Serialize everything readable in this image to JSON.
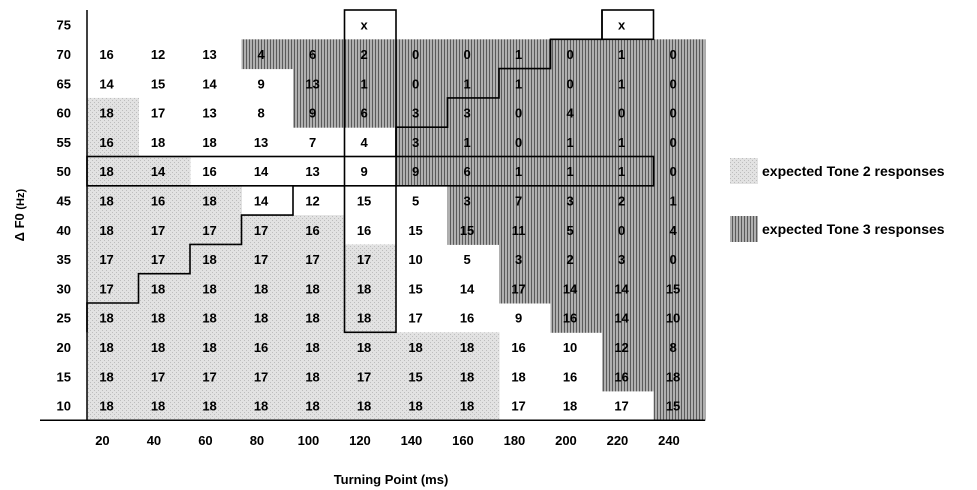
{
  "chart_data": {
    "type": "heatmap",
    "xlabel": "Turning Point (ms)",
    "ylabel": "Δ F0",
    "ylabel_unit": "(Hz)",
    "x_categories": [
      "20",
      "40",
      "60",
      "80",
      "100",
      "120",
      "140",
      "160",
      "180",
      "200",
      "220",
      "240"
    ],
    "y_categories": [
      "75",
      "70",
      "65",
      "60",
      "55",
      "50",
      "45",
      "40",
      "35",
      "30",
      "25",
      "20",
      "15",
      "10"
    ],
    "values": [
      [
        "",
        "",
        "",
        "",
        "",
        "x",
        "",
        "",
        "",
        "",
        "x",
        ""
      ],
      [
        "16",
        "12",
        "13",
        "4",
        "6",
        "2",
        "0",
        "0",
        "1",
        "0",
        "1",
        "0"
      ],
      [
        "14",
        "15",
        "14",
        "9",
        "13",
        "1",
        "0",
        "1",
        "1",
        "0",
        "1",
        "0"
      ],
      [
        "18",
        "17",
        "13",
        "8",
        "9",
        "6",
        "3",
        "3",
        "0",
        "4",
        "0",
        "0"
      ],
      [
        "16",
        "18",
        "18",
        "13",
        "7",
        "4",
        "3",
        "1",
        "0",
        "1",
        "1",
        "0"
      ],
      [
        "18",
        "14",
        "16",
        "14",
        "13",
        "9",
        "9",
        "6",
        "1",
        "1",
        "1",
        "0"
      ],
      [
        "18",
        "16",
        "18",
        "14",
        "12",
        "15",
        "5",
        "3",
        "7",
        "3",
        "2",
        "1"
      ],
      [
        "18",
        "17",
        "17",
        "17",
        "16",
        "16",
        "15",
        "15",
        "11",
        "5",
        "0",
        "4"
      ],
      [
        "17",
        "17",
        "18",
        "17",
        "17",
        "17",
        "10",
        "5",
        "3",
        "2",
        "3",
        "0"
      ],
      [
        "17",
        "18",
        "18",
        "18",
        "18",
        "18",
        "15",
        "14",
        "17",
        "14",
        "14",
        "15"
      ],
      [
        "18",
        "18",
        "18",
        "18",
        "18",
        "18",
        "17",
        "16",
        "9",
        "16",
        "14",
        "10"
      ],
      [
        "18",
        "18",
        "18",
        "16",
        "18",
        "18",
        "18",
        "18",
        "16",
        "10",
        "12",
        "8"
      ],
      [
        "18",
        "17",
        "17",
        "17",
        "18",
        "17",
        "15",
        "18",
        "18",
        "16",
        "16",
        "18"
      ],
      [
        "18",
        "18",
        "18",
        "18",
        "18",
        "18",
        "18",
        "18",
        "17",
        "18",
        "17",
        "15"
      ]
    ],
    "expected_regions": [
      [
        0,
        0,
        0,
        0,
        0,
        0,
        0,
        0,
        0,
        0,
        0,
        0
      ],
      [
        0,
        0,
        0,
        2,
        2,
        2,
        2,
        2,
        2,
        2,
        2,
        2
      ],
      [
        0,
        0,
        0,
        0,
        2,
        2,
        2,
        2,
        2,
        2,
        2,
        2
      ],
      [
        1,
        0,
        0,
        0,
        2,
        2,
        2,
        2,
        2,
        2,
        2,
        2
      ],
      [
        1,
        0,
        0,
        0,
        0,
        0,
        2,
        2,
        2,
        2,
        2,
        2
      ],
      [
        1,
        1,
        0,
        0,
        0,
        0,
        2,
        2,
        2,
        2,
        2,
        2
      ],
      [
        1,
        1,
        1,
        0,
        0,
        0,
        0,
        2,
        2,
        2,
        2,
        2
      ],
      [
        1,
        1,
        1,
        1,
        1,
        0,
        0,
        2,
        2,
        2,
        2,
        2
      ],
      [
        1,
        1,
        1,
        1,
        1,
        1,
        0,
        0,
        2,
        2,
        2,
        2
      ],
      [
        1,
        1,
        1,
        1,
        1,
        1,
        0,
        0,
        2,
        2,
        2,
        2
      ],
      [
        1,
        1,
        1,
        1,
        1,
        1,
        0,
        0,
        0,
        2,
        2,
        2
      ],
      [
        1,
        1,
        1,
        1,
        1,
        1,
        1,
        1,
        0,
        0,
        2,
        2
      ],
      [
        1,
        1,
        1,
        1,
        1,
        1,
        1,
        1,
        0,
        0,
        2,
        2
      ],
      [
        1,
        1,
        1,
        1,
        1,
        1,
        1,
        1,
        0,
        0,
        0,
        2
      ]
    ],
    "top_band": [
      "",
      "",
      "",
      "2",
      "2",
      "2",
      "2",
      "2",
      "2",
      "2",
      "2",
      "2"
    ],
    "legend": [
      {
        "key": "tone2",
        "label": "expected Tone 2 responses",
        "color": "#cfcfcf"
      },
      {
        "key": "tone3",
        "label": "expected Tone 3 responses",
        "color": "#8a8a8a"
      }
    ]
  }
}
